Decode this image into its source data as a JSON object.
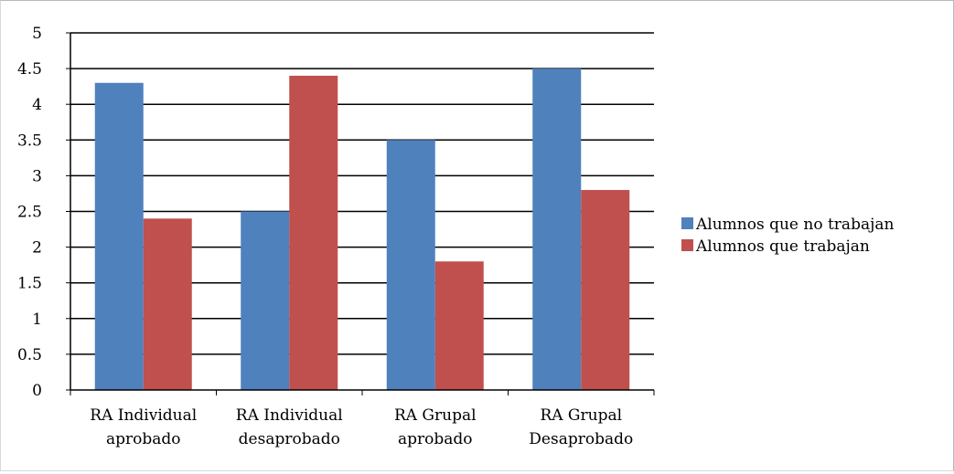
{
  "chart_data": {
    "type": "bar",
    "title": "",
    "xlabel": "",
    "ylabel": "",
    "categories": [
      [
        "RA Individual",
        "aprobado"
      ],
      [
        "RA Individual",
        "desaprobado"
      ],
      [
        "RA Grupal",
        "aprobado"
      ],
      [
        "RA Grupal",
        "Desaprobado"
      ]
    ],
    "series": [
      {
        "name": "Alumnos que no trabajan",
        "color": "#4f81bd",
        "values": [
          4.3,
          2.5,
          3.5,
          4.5
        ]
      },
      {
        "name": "Alumnos que trabajan",
        "color": "#c0504d",
        "values": [
          2.4,
          4.4,
          1.8,
          2.8
        ]
      }
    ],
    "ylim": [
      0,
      5
    ],
    "yticks": [
      "0",
      "0.5",
      "1",
      "1.5",
      "2",
      "2.5",
      "3",
      "3.5",
      "4",
      "4.5",
      "5"
    ],
    "grid": true,
    "legend_position": "right"
  }
}
